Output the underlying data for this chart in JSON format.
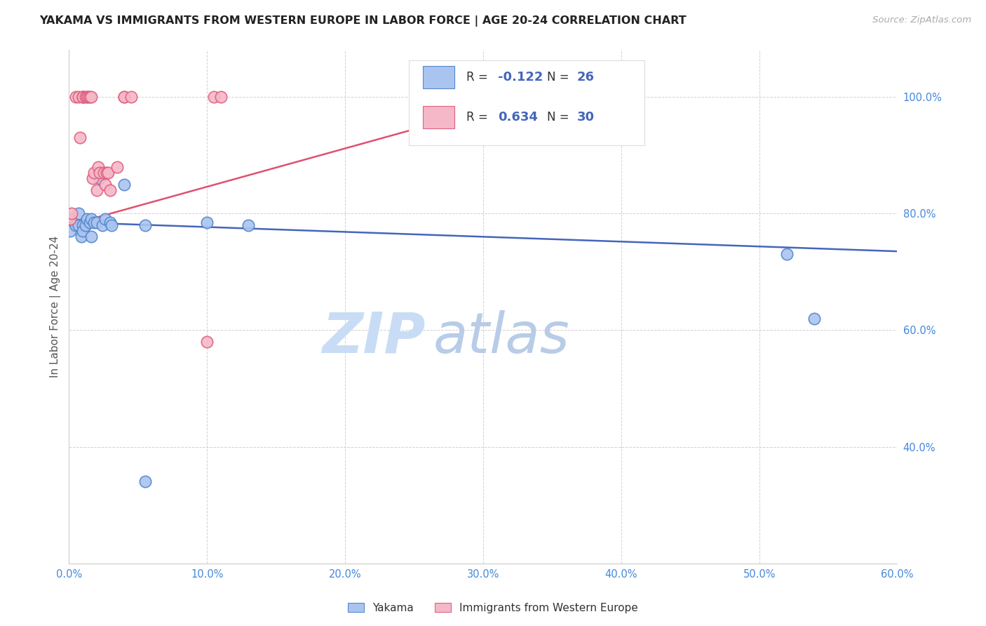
{
  "title": "YAKAMA VS IMMIGRANTS FROM WESTERN EUROPE IN LABOR FORCE | AGE 20-24 CORRELATION CHART",
  "source": "Source: ZipAtlas.com",
  "ylabel": "In Labor Force | Age 20-24",
  "xlim": [
    0.0,
    0.6
  ],
  "ylim": [
    0.2,
    1.08
  ],
  "x_ticks": [
    0.0,
    0.1,
    0.2,
    0.3,
    0.4,
    0.5,
    0.6
  ],
  "y_ticks": [
    0.4,
    0.6,
    0.8,
    1.0
  ],
  "background_color": "#ffffff",
  "watermark_zip": "ZIP",
  "watermark_atlas": "atlas",
  "blue_R": -0.122,
  "blue_N": 26,
  "pink_R": 0.634,
  "pink_N": 30,
  "blue_color": "#aac4f0",
  "blue_edge": "#5588cc",
  "pink_color": "#f5b8c8",
  "pink_edge": "#e06080",
  "blue_line_color": "#4466bb",
  "pink_line_color": "#e05070",
  "yakama_x": [
    0.001,
    0.005,
    0.007,
    0.007,
    0.009,
    0.01,
    0.01,
    0.012,
    0.013,
    0.015,
    0.016,
    0.016,
    0.018,
    0.02,
    0.022,
    0.024,
    0.026,
    0.03,
    0.031,
    0.04,
    0.055,
    0.055,
    0.1,
    0.13,
    0.52,
    0.54
  ],
  "yakama_y": [
    0.77,
    0.78,
    0.8,
    0.78,
    0.76,
    0.78,
    0.77,
    0.78,
    0.79,
    0.785,
    0.79,
    0.76,
    0.785,
    0.785,
    0.86,
    0.78,
    0.79,
    0.785,
    0.78,
    0.85,
    0.78,
    0.34,
    0.785,
    0.78,
    0.73,
    0.62
  ],
  "immigrants_x": [
    0.001,
    0.002,
    0.005,
    0.007,
    0.008,
    0.01,
    0.01,
    0.01,
    0.012,
    0.013,
    0.014,
    0.015,
    0.016,
    0.017,
    0.018,
    0.02,
    0.021,
    0.022,
    0.025,
    0.026,
    0.027,
    0.028,
    0.03,
    0.035,
    0.04,
    0.04,
    0.045,
    0.1,
    0.105,
    0.11
  ],
  "immigrants_y": [
    0.79,
    0.8,
    1.0,
    1.0,
    0.93,
    1.0,
    1.0,
    1.0,
    1.0,
    1.0,
    1.0,
    1.0,
    1.0,
    0.86,
    0.87,
    0.84,
    0.88,
    0.87,
    0.87,
    0.85,
    0.87,
    0.87,
    0.84,
    0.88,
    1.0,
    1.0,
    1.0,
    0.58,
    1.0,
    1.0
  ],
  "blue_line_x0": 0.0,
  "blue_line_x1": 0.6,
  "blue_line_y0": 0.785,
  "blue_line_y1": 0.735,
  "pink_line_x0": 0.0,
  "pink_line_x1": 0.35,
  "pink_line_y0": 0.78,
  "pink_line_y1": 1.01
}
